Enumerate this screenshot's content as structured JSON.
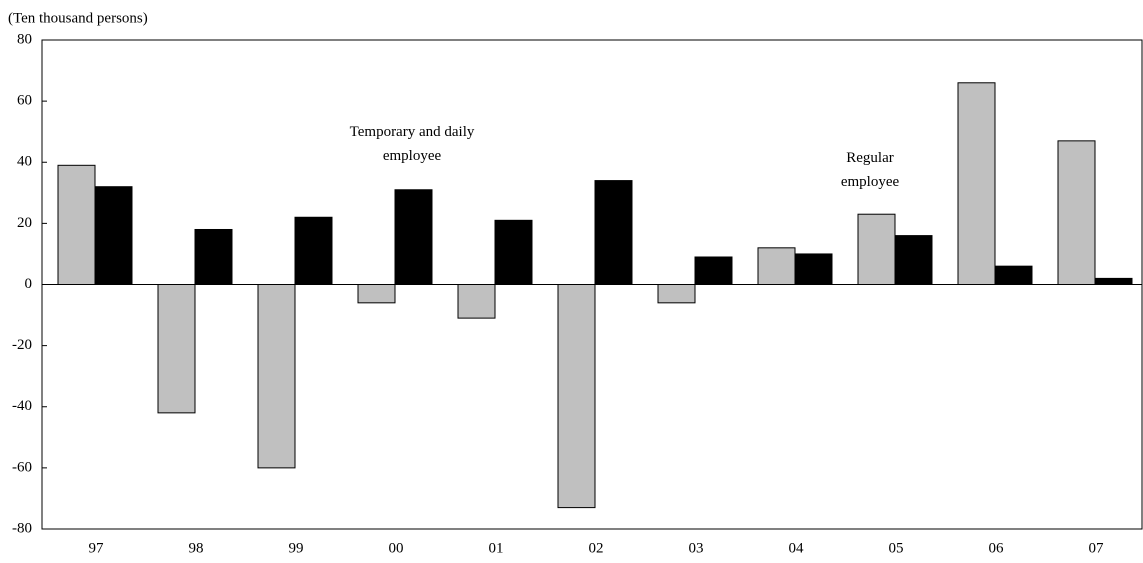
{
  "chart_data": {
    "type": "bar",
    "y_label": "(Ten thousand persons)",
    "categories": [
      "97",
      "98",
      "99",
      "00",
      "01",
      "02",
      "03",
      "04",
      "05",
      "06",
      "07"
    ],
    "series": [
      {
        "name": "Regular employee",
        "color": "#c0c0c0",
        "values": [
          39,
          -42,
          -60,
          -6,
          -11,
          -73,
          -6,
          12,
          23,
          66,
          47
        ]
      },
      {
        "name": "Temporary and daily employee",
        "color": "#000000",
        "values": [
          32,
          18,
          22,
          31,
          21,
          34,
          9,
          10,
          16,
          6,
          2
        ]
      }
    ],
    "ylim": [
      -80,
      80
    ],
    "yticks": [
      -80,
      -60,
      -40,
      -20,
      0,
      20,
      40,
      60,
      80
    ]
  }
}
